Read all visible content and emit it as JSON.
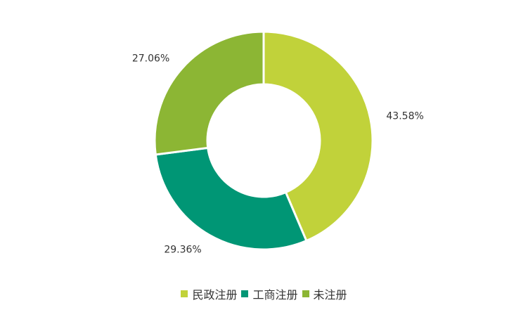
{
  "chart_data": {
    "type": "pie",
    "donut": true,
    "title": "",
    "slices": [
      {
        "name": "民政注册",
        "value": 43.58,
        "label": "43.58%",
        "color": "#c1d23a"
      },
      {
        "name": "工商注册",
        "value": 29.36,
        "label": "29.36%",
        "color": "#009675"
      },
      {
        "name": "未注册",
        "value": 27.06,
        "label": "27.06%",
        "color": "#8cb634"
      }
    ],
    "start_angle_deg": 0,
    "direction": "clockwise",
    "legend_position": "bottom"
  }
}
